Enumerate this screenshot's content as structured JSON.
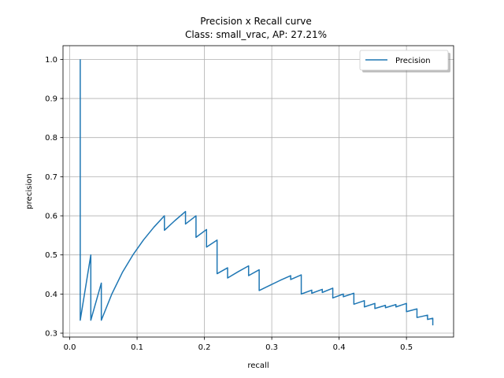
{
  "chart_data": {
    "type": "line",
    "title": "Precision x Recall curve",
    "subtitle": "Class: small_vrac, AP: 27.21%",
    "xlabel": "recall",
    "ylabel": "precision",
    "xlim": [
      -0.01,
      0.57
    ],
    "ylim": [
      0.29,
      1.035
    ],
    "xticks": [
      0.0,
      0.1,
      0.2,
      0.3,
      0.4,
      0.5
    ],
    "yticks": [
      0.3,
      0.4,
      0.5,
      0.6,
      0.7,
      0.8,
      0.9,
      1.0
    ],
    "xtick_labels": [
      "0.0",
      "0.1",
      "0.2",
      "0.3",
      "0.4",
      "0.5"
    ],
    "ytick_labels": [
      "0.3",
      "0.4",
      "0.5",
      "0.6",
      "0.7",
      "0.8",
      "0.9",
      "1.0"
    ],
    "grid": true,
    "legend": {
      "position": "top-right",
      "entries": [
        "Precision"
      ]
    },
    "series": [
      {
        "name": "Precision",
        "color": "#1f77b4",
        "x": [
          0.0156,
          0.0156,
          0.0156,
          0.0313,
          0.0313,
          0.0469,
          0.0469,
          0.0625,
          0.0781,
          0.0938,
          0.1094,
          0.125,
          0.1406,
          0.1406,
          0.1563,
          0.1719,
          0.1719,
          0.1875,
          0.1875,
          0.2031,
          0.2031,
          0.2188,
          0.2188,
          0.2344,
          0.2344,
          0.25,
          0.2656,
          0.2656,
          0.2813,
          0.2813,
          0.2969,
          0.3125,
          0.3281,
          0.3281,
          0.3438,
          0.3438,
          0.3594,
          0.3594,
          0.375,
          0.375,
          0.3906,
          0.3906,
          0.4063,
          0.4063,
          0.4219,
          0.4219,
          0.4375,
          0.4375,
          0.4531,
          0.4531,
          0.4688,
          0.4688,
          0.4844,
          0.4844,
          0.5,
          0.5,
          0.5156,
          0.5156,
          0.5313,
          0.5313,
          0.5391,
          0.5391
        ],
        "y": [
          1.0,
          0.5,
          0.333,
          0.5,
          0.333,
          0.428,
          0.333,
          0.4,
          0.455,
          0.5,
          0.538,
          0.571,
          0.6,
          0.563,
          0.588,
          0.611,
          0.579,
          0.6,
          0.545,
          0.565,
          0.52,
          0.538,
          0.452,
          0.467,
          0.441,
          0.457,
          0.472,
          0.447,
          0.462,
          0.409,
          0.422,
          0.435,
          0.447,
          0.437,
          0.449,
          0.4,
          0.41,
          0.402,
          0.412,
          0.404,
          0.415,
          0.39,
          0.4,
          0.393,
          0.402,
          0.374,
          0.383,
          0.367,
          0.376,
          0.363,
          0.371,
          0.365,
          0.373,
          0.367,
          0.376,
          0.355,
          0.362,
          0.34,
          0.346,
          0.335,
          0.338,
          0.32
        ]
      }
    ]
  }
}
